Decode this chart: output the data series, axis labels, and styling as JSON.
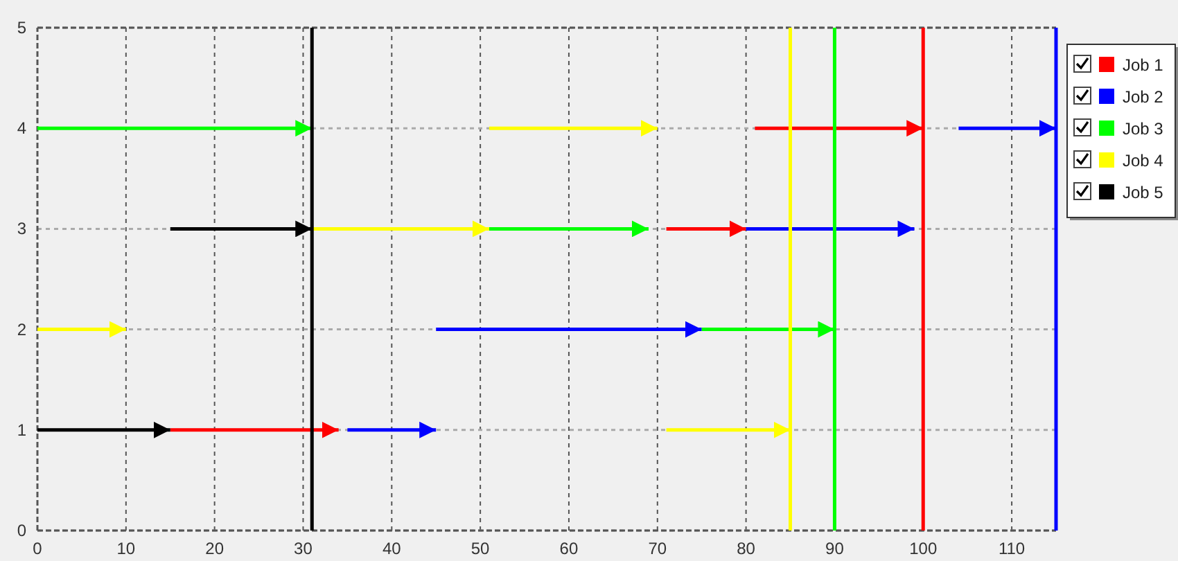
{
  "chart_data": {
    "type": "line",
    "xlim": [
      0,
      115
    ],
    "xticks": [
      0,
      10,
      20,
      30,
      40,
      50,
      60,
      70,
      80,
      90,
      100,
      110
    ],
    "ylim": [
      0,
      5
    ],
    "yticks": [
      0,
      1,
      2,
      3,
      4,
      5
    ],
    "grid": true,
    "legend": "top right",
    "line_style": "solid",
    "series": [
      {
        "name": "Job 1",
        "color": "#ff0000",
        "x": [
          15,
          34
        ],
        "values": [
          1,
          1
        ]
      },
      {
        "color": "#ff0000",
        "x": [
          71,
          80
        ],
        "values": [
          3,
          3
        ]
      },
      {
        "color": "#ff0000",
        "x": [
          81,
          100
        ],
        "values": [
          4,
          4
        ]
      },
      {
        "name": "Job 2",
        "color": "#0000ff",
        "x": [
          35,
          45
        ],
        "values": [
          1,
          1
        ]
      },
      {
        "color": "#0000ff",
        "x": [
          45,
          75
        ],
        "values": [
          2,
          2
        ]
      },
      {
        "color": "#0000ff",
        "x": [
          80,
          99
        ],
        "values": [
          3,
          3
        ]
      },
      {
        "color": "#0000ff",
        "x": [
          104,
          115
        ],
        "values": [
          4,
          4
        ]
      },
      {
        "name": "Job 3",
        "color": "#00ff00",
        "x": [
          0,
          31
        ],
        "values": [
          4,
          4
        ]
      },
      {
        "color": "#00ff00",
        "x": [
          51,
          69
        ],
        "values": [
          3,
          3
        ]
      },
      {
        "color": "#00ff00",
        "x": [
          75,
          90
        ],
        "values": [
          2,
          2
        ]
      },
      {
        "name": "Job 4",
        "color": "#ffff00",
        "x": [
          0,
          10
        ],
        "values": [
          2,
          2
        ]
      },
      {
        "color": "#ffff00",
        "x": [
          31,
          51
        ],
        "values": [
          3,
          3
        ]
      },
      {
        "color": "#ffff00",
        "x": [
          51,
          70
        ],
        "values": [
          4,
          4
        ]
      },
      {
        "color": "#ffff00",
        "x": [
          71,
          85
        ],
        "values": [
          1,
          1
        ]
      },
      {
        "name": "Job 5",
        "color": "#000000",
        "x": [
          0,
          15
        ],
        "values": [
          1,
          1
        ]
      },
      {
        "color": "#000000",
        "x": [
          15,
          31
        ],
        "values": [
          3,
          3
        ]
      }
    ],
    "ref_lines": [
      {
        "axis": "x",
        "value": 31,
        "color": "#000000"
      },
      {
        "axis": "x",
        "value": 85,
        "color": "#ffff00"
      },
      {
        "axis": "x",
        "value": 90,
        "color": "#00ff00"
      },
      {
        "axis": "x",
        "value": 100,
        "color": "#ff0000"
      },
      {
        "axis": "x",
        "value": 115,
        "color": "#0000ff"
      }
    ]
  }
}
